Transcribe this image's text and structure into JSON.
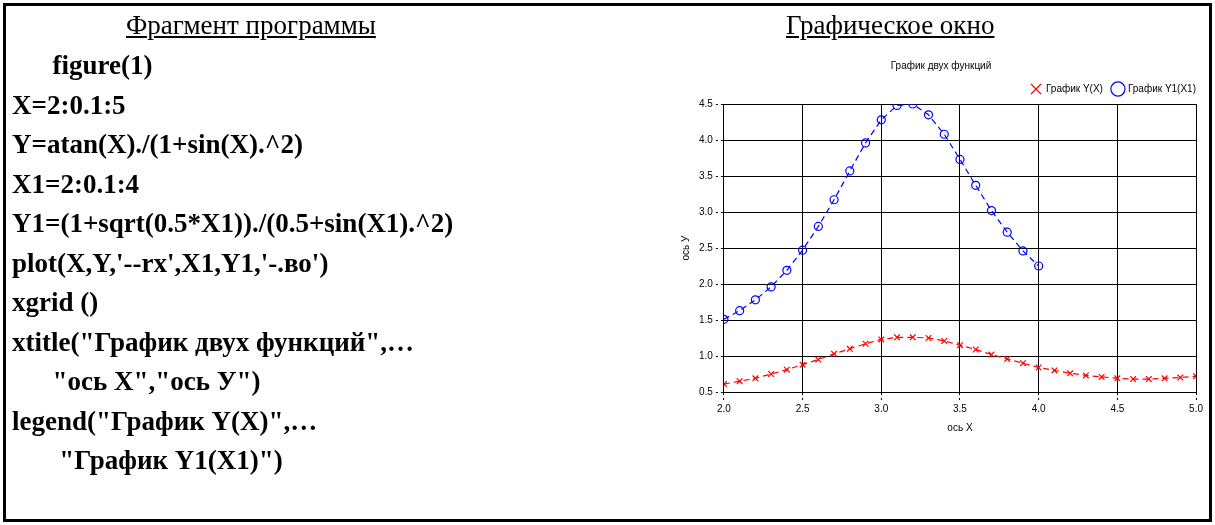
{
  "chart_data": {
    "type": "line",
    "title": "График двух функций",
    "xlabel": "ось X",
    "ylabel": "ось У",
    "annotations": [
      "Фрагмент программы",
      "Графическое окно",
      "      figure(1)",
      "X=2:0.1:5",
      "Y=atan(X)./(1+sin(X).^2)",
      "X1=2:0.1:4",
      "Y1=(1+sqrt(0.5*X1))./(0.5+sin(X1).^2)",
      "plot(X,Y,'--rx',X1,Y1,'-.во')",
      "xgrid ()",
      "xtitle(\"График двух функций\",…",
      "      \"ось X\",\"ось У\")",
      "legend(\"График Y(X)\",…",
      "       \"График Y1(X1)\")"
    ],
    "xlim": [
      2,
      5
    ],
    "xticks": [
      {
        "value": 2,
        "label": "2.0"
      },
      2.5,
      {
        "value": 3,
        "label": "3.0"
      },
      3.5,
      {
        "value": 4,
        "label": "4.0"
      },
      4.5,
      {
        "value": 5,
        "label": "5.0"
      }
    ],
    "ylim": [
      0.5,
      4.5
    ],
    "yticks": [
      0.5,
      {
        "value": 1,
        "label": "1.0"
      },
      1.5,
      {
        "value": 2,
        "label": "2.0"
      },
      2.5,
      {
        "value": 3,
        "label": "3.0"
      },
      3.5,
      {
        "value": 4,
        "label": "4.0"
      },
      4.5
    ],
    "grid": true,
    "legend": "top right",
    "series": [
      {
        "name": "График Y(X)",
        "color": "#ff0000",
        "marker": "cross",
        "line_style": "dashed",
        "x": [
          2,
          2.1,
          2.2,
          2.3,
          2.4,
          2.5,
          2.6,
          2.7,
          2.8,
          2.9,
          3,
          3.1,
          3.2,
          3.3,
          3.4,
          3.5,
          3.6,
          3.7,
          3.8,
          3.9,
          4,
          4.1,
          4.2,
          4.3,
          4.4,
          4.5,
          4.6,
          4.7,
          4.8,
          4.9,
          5
        ],
        "values": [
          0.61,
          0.65,
          0.69,
          0.75,
          0.81,
          0.88,
          0.95,
          1.03,
          1.1,
          1.17,
          1.23,
          1.26,
          1.26,
          1.25,
          1.21,
          1.15,
          1.09,
          1.02,
          0.96,
          0.9,
          0.84,
          0.8,
          0.76,
          0.73,
          0.71,
          0.69,
          0.68,
          0.68,
          0.69,
          0.7,
          0.72
        ]
      },
      {
        "name": "График Y1(X1)",
        "color": "#0000ff",
        "marker": "circle",
        "line_style": "dashed",
        "x": [
          2,
          2.1,
          2.2,
          2.3,
          2.4,
          2.5,
          2.6,
          2.7,
          2.8,
          2.9,
          3,
          3.1,
          3.2,
          3.3,
          3.4,
          3.5,
          3.6,
          3.7,
          3.8,
          3.9,
          4
        ],
        "values": [
          1.51,
          1.63,
          1.78,
          1.96,
          2.19,
          2.47,
          2.8,
          3.17,
          3.57,
          3.96,
          4.28,
          4.48,
          4.5,
          4.35,
          4.08,
          3.73,
          3.37,
          3.02,
          2.72,
          2.46,
          2.25
        ]
      }
    ]
  }
}
